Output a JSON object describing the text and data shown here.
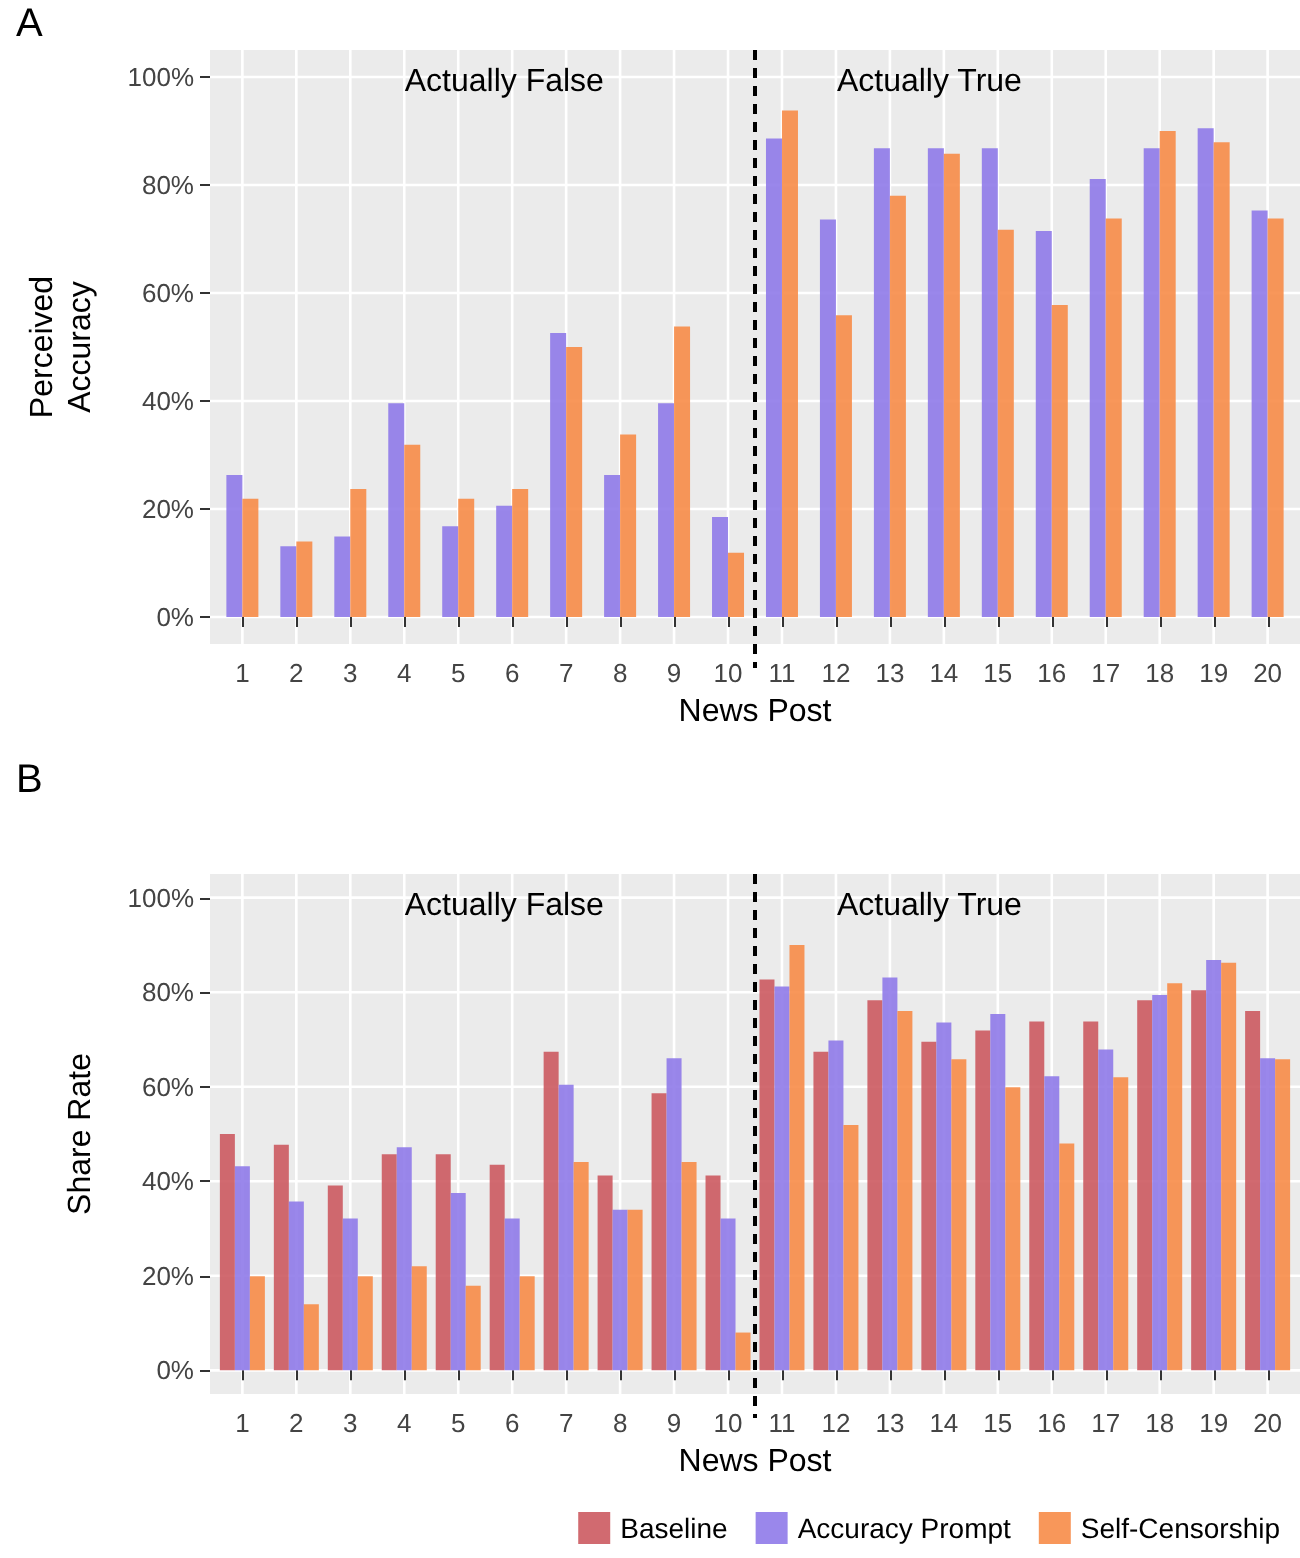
{
  "chart_data": [
    {
      "type": "bar",
      "xlabel": "News Post",
      "ylabel": "Perceived\nAccuracy",
      "x": [
        1,
        2,
        3,
        4,
        5,
        6,
        7,
        8,
        9,
        10,
        11,
        12,
        13,
        14,
        15,
        16,
        17,
        18,
        19,
        20
      ],
      "xlim": [
        0.4,
        20.6
      ],
      "xticks": [
        1,
        2,
        3,
        4,
        5,
        6,
        7,
        8,
        9,
        10,
        11,
        12,
        13,
        14,
        15,
        16,
        17,
        18,
        19,
        20
      ],
      "series": [
        {
          "color": "#8f7ae9",
          "values": [
            26.3,
            13.1,
            14.9,
            39.6,
            16.8,
            20.6,
            52.6,
            26.3,
            39.6,
            18.5,
            88.6,
            73.6,
            86.8,
            86.8,
            86.8,
            71.5,
            81.1,
            86.8,
            90.5,
            75.3
          ]
        },
        {
          "color": "#f78c48",
          "values": [
            21.9,
            14.0,
            23.7,
            31.9,
            21.9,
            23.7,
            50.0,
            33.8,
            53.8,
            11.9,
            93.8,
            55.9,
            78.0,
            85.8,
            71.7,
            57.8,
            73.8,
            90.0,
            87.9,
            73.8
          ]
        }
      ],
      "ylim": [
        -5,
        105
      ],
      "yticks": [
        {
          "value": 0,
          "label": "0%"
        },
        {
          "value": 20,
          "label": "20%"
        },
        {
          "value": 40,
          "label": "40%"
        },
        {
          "value": 60,
          "label": "60%"
        },
        {
          "value": 80,
          "label": "80%"
        },
        {
          "value": 100,
          "label": "100%"
        }
      ],
      "ref_lines": [
        {
          "axis": "x",
          "value": 10.5,
          "label": null,
          "color": "#000000",
          "line_style": "dashed"
        }
      ],
      "annotations": [
        "A",
        "Actually False",
        "Actually True"
      ],
      "grid": true,
      "legend": false
    },
    {
      "type": "bar",
      "xlabel": "News Post",
      "ylabel": "Share Rate",
      "x": [
        1,
        2,
        3,
        4,
        5,
        6,
        7,
        8,
        9,
        10,
        11,
        12,
        13,
        14,
        15,
        16,
        17,
        18,
        19,
        20
      ],
      "xlim": [
        0.4,
        20.6
      ],
      "xticks": [
        1,
        2,
        3,
        4,
        5,
        6,
        7,
        8,
        9,
        10,
        11,
        12,
        13,
        14,
        15,
        16,
        17,
        18,
        19,
        20
      ],
      "series": [
        {
          "name": "Baseline",
          "color": "#cc5a61",
          "values": [
            50.0,
            47.7,
            39.1,
            45.7,
            45.7,
            43.5,
            67.4,
            41.2,
            58.6,
            41.2,
            82.7,
            67.4,
            78.3,
            69.5,
            71.9,
            73.8,
            73.8,
            78.3,
            80.4,
            76.0
          ]
        },
        {
          "name": "Accuracy Prompt",
          "color": "#8f7ae9",
          "values": [
            43.2,
            35.7,
            32.1,
            47.2,
            37.5,
            32.1,
            60.4,
            34.0,
            66.0,
            32.1,
            81.2,
            69.8,
            83.1,
            73.6,
            75.4,
            62.2,
            67.9,
            79.4,
            86.8,
            66.0
          ]
        },
        {
          "name": "Self-Censorship",
          "color": "#f78c48",
          "values": [
            19.9,
            14.0,
            19.9,
            22.0,
            17.9,
            19.9,
            44.1,
            34.0,
            44.1,
            8.0,
            90.0,
            51.9,
            76.0,
            65.8,
            59.9,
            48.0,
            62.0,
            81.9,
            86.2,
            65.8
          ]
        }
      ],
      "ylim": [
        -5,
        105
      ],
      "yticks": [
        {
          "value": 0,
          "label": "0%"
        },
        {
          "value": 20,
          "label": "20%"
        },
        {
          "value": 40,
          "label": "40%"
        },
        {
          "value": 60,
          "label": "60%"
        },
        {
          "value": 80,
          "label": "80%"
        },
        {
          "value": 100,
          "label": "100%"
        }
      ],
      "ref_lines": [
        {
          "axis": "x",
          "value": 10.5,
          "label": null,
          "color": "#000000",
          "line_style": "dashed"
        }
      ],
      "annotations": [
        "B",
        "Actually False",
        "Actually True"
      ],
      "grid": true,
      "legend": "bottom"
    }
  ]
}
